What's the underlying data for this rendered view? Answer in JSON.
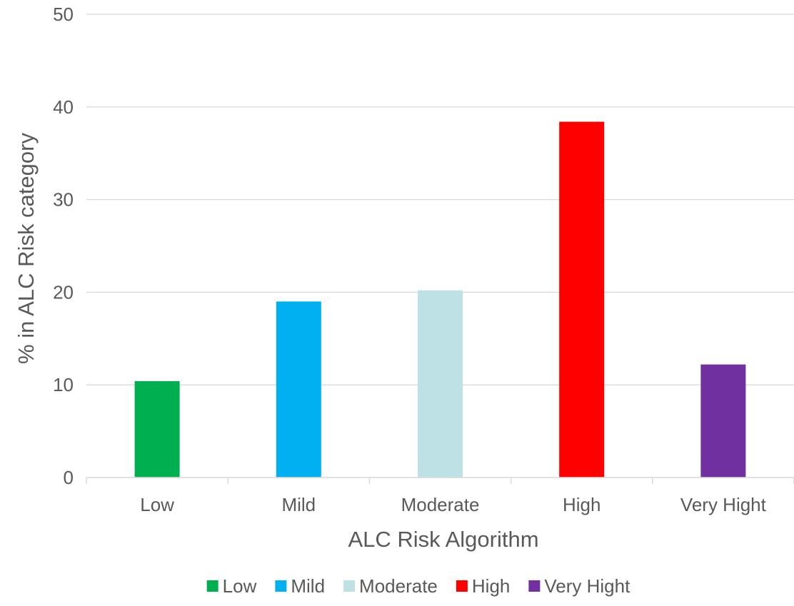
{
  "chart_data": {
    "type": "bar",
    "title": "",
    "xlabel": "ALC Risk Algorithm",
    "ylabel": "% in ALC Risk category",
    "categories": [
      "Low",
      "Mild",
      "Moderate",
      "High",
      "Very Hight"
    ],
    "values": [
      10.4,
      19.0,
      20.2,
      38.4,
      12.2
    ],
    "colors": [
      "#00b050",
      "#00b0f0",
      "#bde1e4",
      "#ff0000",
      "#7030a0"
    ],
    "ylim": [
      0,
      50
    ],
    "yticks": [
      "0",
      "10",
      "20",
      "30",
      "40",
      "50"
    ],
    "grid": true,
    "legend": {
      "position": "bottom",
      "entries": [
        "Low",
        "Mild",
        "Moderate",
        "High",
        "Very Hight"
      ]
    }
  }
}
